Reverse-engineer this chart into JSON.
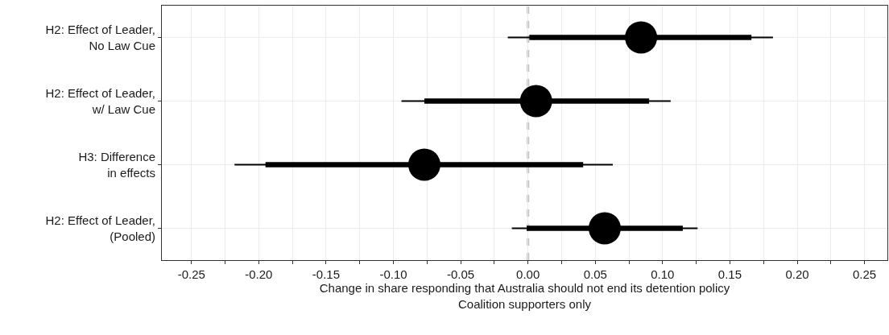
{
  "chart_data": {
    "type": "scatter",
    "orientation": "horizontal",
    "categories": [
      "H2: Effect of Leader,\nNo Law Cue",
      "H2: Effect of Leader,\nw/ Law Cue",
      "H3: Difference\nin effects",
      "H2: Effect of Leader,\n(Pooled)"
    ],
    "series": [
      {
        "type": "bar",
        "color": "#000000",
        "base": [
          0.001,
          -0.077,
          -0.195,
          -0.001
        ],
        "values": [
          0.165,
          0.167,
          0.236,
          0.116
        ]
      },
      {
        "color": "#000000",
        "marker": "circle",
        "values": [
          0.084,
          0.006,
          -0.077,
          0.057
        ],
        "errors": [
          [
            -0.015,
            0.182
          ],
          [
            -0.094,
            0.106
          ],
          [
            -0.218,
            0.063
          ],
          [
            -0.012,
            0.126
          ]
        ]
      }
    ],
    "xlabel": "Change in share responding that Australia should not end its detention policy\nCoalition supporters only",
    "xlim": [
      -0.272,
      0.267
    ],
    "xticks": [
      {
        "value": -0.25,
        "label": "-0.25"
      },
      {
        "value": -0.225,
        "label": null
      },
      {
        "value": -0.2,
        "label": "-0.20"
      },
      {
        "value": -0.175,
        "label": null
      },
      {
        "value": -0.15,
        "label": "-0.15"
      },
      {
        "value": -0.125,
        "label": null
      },
      {
        "value": -0.1,
        "label": "-0.10"
      },
      {
        "value": -0.075,
        "label": null
      },
      {
        "value": -0.05,
        "label": "-0.05"
      },
      {
        "value": -0.025,
        "label": null
      },
      {
        "value": 0,
        "label": "0.00"
      },
      {
        "value": 0.025,
        "label": null
      },
      {
        "value": 0.05,
        "label": "0.05"
      },
      {
        "value": 0.075,
        "label": null
      },
      {
        "value": 0.1,
        "label": "0.10"
      },
      {
        "value": 0.125,
        "label": null
      },
      {
        "value": 0.15,
        "label": "0.15"
      },
      {
        "value": 0.175,
        "label": null
      },
      {
        "value": 0.2,
        "label": "0.20"
      },
      {
        "value": 0.225,
        "label": null
      },
      {
        "value": 0.25,
        "label": "0.25"
      }
    ],
    "ref_lines": [
      {
        "axis": "x",
        "value": 0,
        "color": "#bebebe",
        "line_style": "dashed"
      }
    ],
    "grid": true
  }
}
